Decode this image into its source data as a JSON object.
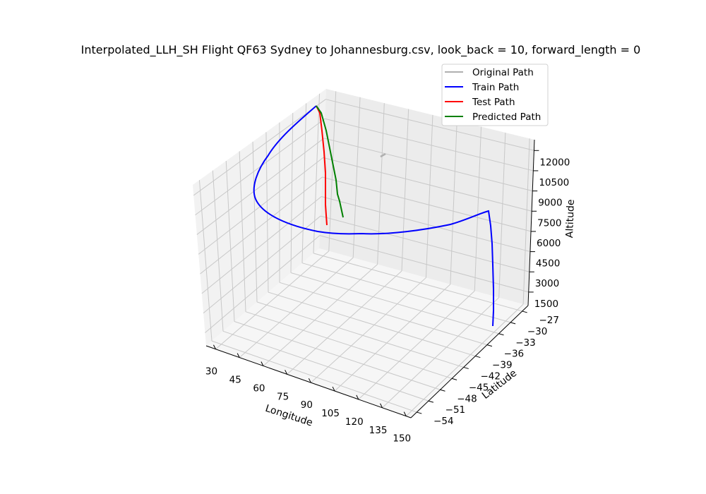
{
  "chart_data": {
    "type": "line",
    "projection": "3d",
    "title": "Interpolated_LLH_SH Flight QF63 Sydney to Johannesburg.csv, look_back = 10, forward_length = 0",
    "xlabel": "Longitude",
    "ylabel": "Latitude",
    "zlabel": "Altitude",
    "xticks": [
      "30",
      "45",
      "60",
      "75",
      "90",
      "105",
      "120",
      "135",
      "150"
    ],
    "yticks": [
      "−54",
      "−51",
      "−48",
      "−45",
      "−42",
      "−39",
      "−36",
      "−33",
      "−30",
      "−27"
    ],
    "zticks": [
      "1500",
      "3000",
      "4500",
      "6000",
      "7500",
      "9000",
      "10500",
      "12000"
    ],
    "legend_position": "top-right",
    "grid": true,
    "series": [
      {
        "name": "Original Path",
        "color": "#b0b0b0"
      },
      {
        "name": "Train Path",
        "color": "#0000ff"
      },
      {
        "name": "Test Path",
        "color": "#ff0000"
      },
      {
        "name": "Predicted Path",
        "color": "#008000"
      }
    ]
  }
}
